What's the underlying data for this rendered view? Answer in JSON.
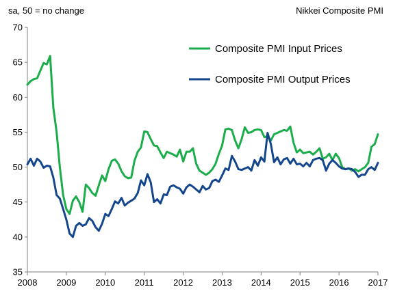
{
  "chart_data": {
    "type": "line",
    "title": "",
    "unit_note": "sa, 50 = no change",
    "source_label": "Nikkei Composite PMI",
    "xlabel": "",
    "ylabel": "",
    "xlim": [
      2008,
      2017
    ],
    "ylim": [
      35,
      70
    ],
    "y_ticks": [
      "35",
      "40",
      "45",
      "50",
      "55",
      "60",
      "65",
      "70"
    ],
    "x_ticks": [
      "2008",
      "2009",
      "2010",
      "2011",
      "2012",
      "2013",
      "2014",
      "2015",
      "2016",
      "2017"
    ],
    "grid": false,
    "legend_position": "top-right",
    "series": [
      {
        "name": "Composite PMI Input Prices",
        "color": "#1aad4a",
        "x": [
          2008.0,
          2008.083,
          2008.167,
          2008.25,
          2008.333,
          2008.417,
          2008.5,
          2008.583,
          2008.667,
          2008.75,
          2008.833,
          2008.917,
          2009.0,
          2009.083,
          2009.167,
          2009.25,
          2009.333,
          2009.417,
          2009.5,
          2009.583,
          2009.667,
          2009.75,
          2009.833,
          2009.917,
          2010.0,
          2010.083,
          2010.167,
          2010.25,
          2010.333,
          2010.417,
          2010.5,
          2010.583,
          2010.667,
          2010.75,
          2010.833,
          2010.917,
          2011.0,
          2011.083,
          2011.167,
          2011.25,
          2011.333,
          2011.417,
          2011.5,
          2011.583,
          2011.667,
          2011.75,
          2011.833,
          2011.917,
          2012.0,
          2012.083,
          2012.167,
          2012.25,
          2012.333,
          2012.417,
          2012.5,
          2012.583,
          2012.667,
          2012.75,
          2012.833,
          2012.917,
          2013.0,
          2013.083,
          2013.167,
          2013.25,
          2013.333,
          2013.417,
          2013.5,
          2013.583,
          2013.667,
          2013.75,
          2013.833,
          2013.917,
          2014.0,
          2014.083,
          2014.167,
          2014.25,
          2014.333,
          2014.417,
          2014.5,
          2014.583,
          2014.667,
          2014.75,
          2014.833,
          2014.917,
          2015.0,
          2015.083,
          2015.167,
          2015.25,
          2015.333,
          2015.417,
          2015.5,
          2015.583,
          2015.667,
          2015.75,
          2015.833,
          2015.917,
          2016.0,
          2016.083,
          2016.167,
          2016.25,
          2016.333,
          2016.417,
          2016.5,
          2016.583,
          2016.667,
          2016.75,
          2016.833,
          2016.917,
          2017.0
        ],
        "values": [
          61.8,
          62.3,
          62.6,
          62.7,
          63.8,
          64.9,
          64.7,
          65.9,
          58.5,
          55.0,
          50.0,
          46.0,
          44.0,
          43.3,
          45.2,
          45.8,
          45.0,
          43.6,
          47.5,
          47.0,
          46.3,
          45.9,
          47.4,
          48.8,
          48.0,
          49.7,
          50.9,
          51.1,
          50.5,
          49.4,
          48.7,
          48.4,
          48.5,
          50.9,
          52.2,
          52.8,
          55.1,
          55.0,
          54.0,
          53.1,
          53.0,
          52.1,
          51.3,
          52.2,
          52.0,
          51.8,
          51.5,
          52.5,
          50.8,
          52.2,
          52.2,
          52.7,
          50.5,
          49.5,
          49.2,
          48.9,
          49.2,
          49.7,
          50.5,
          51.9,
          53.1,
          55.4,
          55.5,
          55.3,
          53.8,
          52.7,
          54.0,
          55.7,
          54.9,
          55.0,
          55.3,
          55.4,
          55.3,
          54.3,
          54.4,
          53.8,
          54.7,
          54.9,
          55.1,
          55.3,
          55.2,
          55.8,
          53.5,
          52.1,
          52.5,
          52.0,
          52.1,
          52.2,
          51.8,
          52.2,
          52.7,
          51.2,
          51.4,
          51.9,
          51.0,
          51.9,
          51.3,
          50.0,
          49.7,
          49.8,
          49.5,
          49.7,
          49.4,
          49.7,
          50.0,
          50.6,
          52.9,
          53.3,
          54.7
        ]
      },
      {
        "name": "Composite PMI Output Prices",
        "color": "#14468c",
        "x": [
          2008.0,
          2008.083,
          2008.167,
          2008.25,
          2008.333,
          2008.417,
          2008.5,
          2008.583,
          2008.667,
          2008.75,
          2008.833,
          2008.917,
          2009.0,
          2009.083,
          2009.167,
          2009.25,
          2009.333,
          2009.417,
          2009.5,
          2009.583,
          2009.667,
          2009.75,
          2009.833,
          2009.917,
          2010.0,
          2010.083,
          2010.167,
          2010.25,
          2010.333,
          2010.417,
          2010.5,
          2010.583,
          2010.667,
          2010.75,
          2010.833,
          2010.917,
          2011.0,
          2011.083,
          2011.167,
          2011.25,
          2011.333,
          2011.417,
          2011.5,
          2011.583,
          2011.667,
          2011.75,
          2011.833,
          2011.917,
          2012.0,
          2012.083,
          2012.167,
          2012.25,
          2012.333,
          2012.417,
          2012.5,
          2012.583,
          2012.667,
          2012.75,
          2012.833,
          2012.917,
          2013.0,
          2013.083,
          2013.167,
          2013.25,
          2013.333,
          2013.417,
          2013.5,
          2013.583,
          2013.667,
          2013.75,
          2013.833,
          2013.917,
          2014.0,
          2014.083,
          2014.167,
          2014.25,
          2014.333,
          2014.417,
          2014.5,
          2014.583,
          2014.667,
          2014.75,
          2014.833,
          2014.917,
          2015.0,
          2015.083,
          2015.167,
          2015.25,
          2015.333,
          2015.417,
          2015.5,
          2015.583,
          2015.667,
          2015.75,
          2015.833,
          2015.917,
          2016.0,
          2016.083,
          2016.167,
          2016.25,
          2016.333,
          2016.417,
          2016.5,
          2016.583,
          2016.667,
          2016.75,
          2016.833,
          2016.917,
          2017.0
        ],
        "values": [
          50.4,
          51.2,
          50.2,
          51.2,
          50.8,
          49.9,
          50.2,
          50.1,
          48.5,
          46.0,
          45.5,
          44.0,
          42.5,
          40.5,
          40.0,
          41.6,
          42.0,
          41.6,
          41.8,
          42.7,
          42.3,
          41.4,
          40.9,
          41.9,
          43.3,
          43.0,
          44.0,
          45.1,
          44.8,
          45.6,
          44.5,
          44.9,
          45.2,
          45.5,
          46.3,
          48.1,
          47.4,
          49.0,
          47.8,
          45.0,
          45.4,
          44.8,
          46.1,
          46.0,
          47.2,
          47.4,
          47.1,
          46.9,
          46.2,
          47.1,
          47.5,
          47.2,
          46.8,
          46.4,
          47.3,
          46.8,
          47.0,
          48.0,
          48.2,
          47.9,
          48.8,
          49.8,
          49.6,
          51.6,
          50.8,
          49.7,
          49.6,
          49.8,
          50.0,
          49.5,
          51.0,
          50.2,
          51.4,
          50.8,
          54.9,
          53.3,
          50.7,
          51.4,
          50.4,
          51.1,
          51.3,
          50.5,
          51.2,
          50.4,
          50.5,
          50.1,
          50.6,
          50.1,
          51.0,
          51.2,
          51.3,
          51.0,
          49.5,
          50.5,
          51.0,
          50.6,
          50.1,
          49.8,
          49.7,
          49.8,
          49.7,
          49.3,
          48.6,
          48.9,
          48.9,
          49.7,
          50.0,
          49.6,
          50.6
        ]
      }
    ]
  }
}
